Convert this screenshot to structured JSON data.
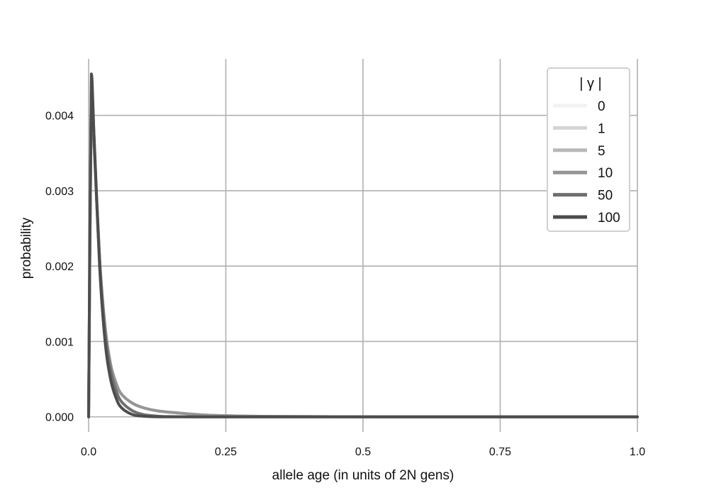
{
  "chart_data": {
    "type": "line",
    "title": "",
    "xlabel": "allele age (in units of 2N gens)",
    "ylabel": "probability",
    "xlim": [
      0,
      1
    ],
    "ylim": [
      -0.0002,
      0.00475
    ],
    "x_ticks": [
      0,
      0.25,
      0.5,
      0.75,
      1
    ],
    "x_tick_labels": [
      "0.0",
      "0.25",
      "0.5",
      "0.75",
      "1.0"
    ],
    "y_ticks": [
      0,
      0.001,
      0.002,
      0.003,
      0.004
    ],
    "y_tick_labels": [
      "0.000",
      "0.001",
      "0.002",
      "0.003",
      "0.004"
    ],
    "grid": true,
    "legend": {
      "title": "| γ |",
      "position": "top-right"
    },
    "x": [
      0,
      0.005,
      0.01,
      0.02,
      0.03,
      0.04,
      0.05,
      0.06,
      0.08,
      0.1,
      0.125,
      0.15,
      0.2,
      0.25,
      0.3,
      0.4,
      0.5,
      0.6,
      0.7,
      0.8,
      0.9,
      1.0
    ],
    "series": [
      {
        "name": "0",
        "color": "#f2f2f2",
        "values": [
          0,
          0.0043,
          0.0036,
          0.0021,
          0.0012,
          0.0007,
          0.00045,
          0.0003,
          0.00018,
          0.00012,
          8e-05,
          6e-05,
          3e-05,
          1.5e-05,
          8e-06,
          3e-06,
          1e-06,
          0,
          0,
          0,
          0,
          0
        ]
      },
      {
        "name": "1",
        "color": "#d4d4d4",
        "values": [
          0,
          0.0043,
          0.0036,
          0.0021,
          0.0012,
          0.0007,
          0.00045,
          0.0003,
          0.00018,
          0.00012,
          8e-05,
          6e-05,
          3e-05,
          1.5e-05,
          8e-06,
          3e-06,
          1e-06,
          0,
          0,
          0,
          0,
          0
        ]
      },
      {
        "name": "5",
        "color": "#b8b8b8",
        "values": [
          0,
          0.0043,
          0.0036,
          0.0021,
          0.0012,
          0.0007,
          0.00045,
          0.0003,
          0.00018,
          0.00012,
          8e-05,
          6e-05,
          3e-05,
          1.5e-05,
          8e-06,
          3e-06,
          1e-06,
          0,
          0,
          0,
          0,
          0
        ]
      },
      {
        "name": "10",
        "color": "#959595",
        "values": [
          0,
          0.0043,
          0.0036,
          0.0021,
          0.0012,
          0.0007,
          0.00045,
          0.0003,
          0.00018,
          0.00012,
          8e-05,
          6e-05,
          3e-05,
          1.5e-05,
          8e-06,
          3e-06,
          1e-06,
          0,
          0,
          0,
          0,
          0
        ]
      },
      {
        "name": "50",
        "color": "#6e6e6e",
        "values": [
          0,
          0.0044,
          0.0037,
          0.0021,
          0.0011,
          0.00062,
          0.00035,
          0.0002,
          8e-05,
          3e-05,
          1e-05,
          3e-06,
          0,
          0,
          0,
          0,
          0,
          0,
          0,
          0,
          0,
          0
        ]
      },
      {
        "name": "100",
        "color": "#4d4d4d",
        "values": [
          0,
          0.00455,
          0.0037,
          0.002,
          0.001,
          0.0005,
          0.00025,
          0.00012,
          3e-05,
          8e-06,
          1e-06,
          0,
          0,
          0,
          0,
          0,
          0,
          0,
          0,
          0,
          0,
          0
        ]
      }
    ]
  }
}
